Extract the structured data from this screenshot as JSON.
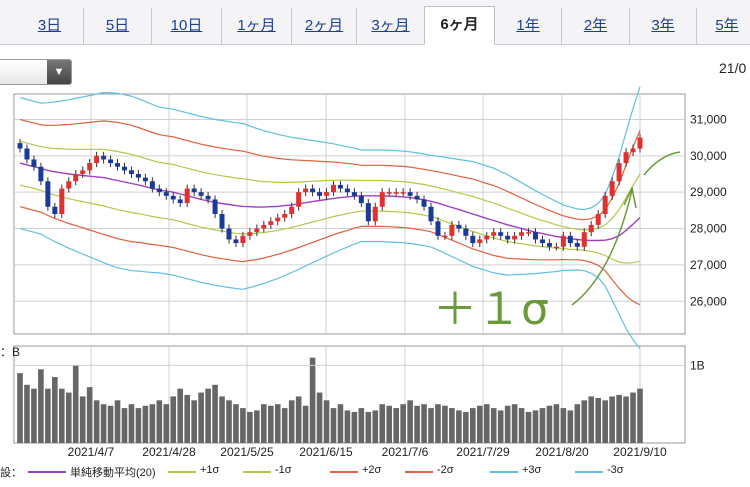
{
  "tabs": [
    {
      "label": "3日",
      "active": false
    },
    {
      "label": "5日",
      "active": false
    },
    {
      "label": "10日",
      "active": false
    },
    {
      "label": "1ヶ月",
      "active": false
    },
    {
      "label": "2ヶ月",
      "active": false
    },
    {
      "label": "3ヶ月",
      "active": false
    },
    {
      "label": "6ヶ月",
      "active": true
    },
    {
      "label": "1年",
      "active": false
    },
    {
      "label": "2年",
      "active": false
    },
    {
      "label": "3年",
      "active": false
    },
    {
      "label": "5年",
      "active": false
    }
  ],
  "header": {
    "date_partial": "21/0"
  },
  "annotation": {
    "text": "＋１σ",
    "color": "#6a9a3a"
  },
  "volume_label": "：B",
  "legend": {
    "prefix": "設：",
    "items": [
      {
        "label": "単純移動平均(20)",
        "color": "#a040c0"
      },
      {
        "label": "+1σ",
        "color": "#b5c84a"
      },
      {
        "label": "-1σ",
        "color": "#b5c84a"
      },
      {
        "label": "+2σ",
        "color": "#e06040"
      },
      {
        "label": "-2σ",
        "color": "#e06040"
      },
      {
        "label": "+3σ",
        "color": "#60c0e0"
      },
      {
        "label": "-3σ",
        "color": "#60c0e0"
      }
    ]
  },
  "chart_data": {
    "type": "candlestick",
    "x_tick_labels": [
      "2021/4/7",
      "2021/4/28",
      "2021/5/25",
      "2021/6/15",
      "2021/7/6",
      "2021/7/29",
      "2021/8/20",
      "2021/9/10"
    ],
    "y_ticks": [
      31000,
      30000,
      29000,
      28000,
      27000,
      26000
    ],
    "y_tick_labels": [
      "31,000",
      "30,000",
      "29,000",
      "28,000",
      "27,000",
      "26,000"
    ],
    "ylim": [
      25100,
      31700
    ],
    "volume_tick_label": "1B",
    "close": [
      30200,
      29900,
      29700,
      29300,
      28600,
      28400,
      29100,
      29300,
      29500,
      29600,
      29800,
      30000,
      29900,
      29800,
      29700,
      29600,
      29500,
      29400,
      29300,
      29100,
      29000,
      28900,
      28800,
      28700,
      29100,
      29000,
      28900,
      28800,
      28400,
      28000,
      27700,
      27600,
      27800,
      27900,
      28000,
      28100,
      28200,
      28300,
      28400,
      28600,
      29000,
      29100,
      29000,
      28900,
      29000,
      29200,
      29100,
      29000,
      28900,
      28700,
      28200,
      28600,
      29000,
      29000,
      29000,
      29000,
      28900,
      28800,
      28600,
      28200,
      27800,
      27800,
      28100,
      28000,
      27800,
      27600,
      27700,
      27800,
      27900,
      27800,
      27700,
      27800,
      27900,
      27900,
      27700,
      27600,
      27500,
      27500,
      27800,
      27600,
      27500,
      27900,
      28100,
      28400,
      28900,
      29300,
      29800,
      30100,
      30200,
      30500
    ],
    "sma20": [
      29800,
      29750,
      29700,
      29650,
      29600,
      29560,
      29530,
      29500,
      29480,
      29460,
      29440,
      29420,
      29400,
      29360,
      29320,
      29280,
      29240,
      29200,
      29150,
      29100,
      29060,
      29030,
      29000,
      28950,
      28900,
      28850,
      28800,
      28760,
      28720,
      28690,
      28660,
      28630,
      28610,
      28600,
      28590,
      28590,
      28600,
      28610,
      28630,
      28650,
      28680,
      28710,
      28740,
      28770,
      28800,
      28830,
      28850,
      28870,
      28890,
      28900,
      28900,
      28900,
      28900,
      28890,
      28880,
      28870,
      28850,
      28820,
      28790,
      28750,
      28700,
      28640,
      28580,
      28520,
      28460,
      28400,
      28340,
      28280,
      28220,
      28160,
      28100,
      28050,
      28000,
      27950,
      27900,
      27860,
      27820,
      27780,
      27750,
      27720,
      27700,
      27680,
      27670,
      27670,
      27680,
      27720,
      27800,
      27950,
      28120,
      28300
    ],
    "sigma": [
      600,
      600,
      600,
      600,
      620,
      640,
      660,
      680,
      700,
      720,
      740,
      760,
      780,
      790,
      800,
      800,
      800,
      790,
      780,
      770,
      760,
      760,
      760,
      760,
      760,
      760,
      760,
      760,
      760,
      760,
      760,
      760,
      760,
      740,
      720,
      700,
      680,
      660,
      640,
      620,
      600,
      580,
      560,
      540,
      520,
      500,
      480,
      460,
      440,
      420,
      420,
      420,
      420,
      420,
      420,
      420,
      420,
      420,
      420,
      420,
      430,
      440,
      450,
      460,
      470,
      480,
      480,
      480,
      480,
      470,
      460,
      440,
      420,
      400,
      380,
      360,
      340,
      320,
      300,
      290,
      280,
      280,
      300,
      340,
      420,
      560,
      720,
      900,
      1060,
      1200
    ],
    "volume": [
      0.9,
      0.75,
      0.7,
      0.95,
      0.7,
      0.85,
      0.7,
      0.65,
      1.0,
      0.6,
      0.72,
      0.55,
      0.5,
      0.48,
      0.55,
      0.45,
      0.5,
      0.45,
      0.48,
      0.5,
      0.55,
      0.5,
      0.6,
      0.7,
      0.62,
      0.55,
      0.65,
      0.7,
      0.75,
      0.6,
      0.55,
      0.5,
      0.45,
      0.4,
      0.42,
      0.5,
      0.48,
      0.5,
      0.45,
      0.55,
      0.6,
      0.48,
      1.1,
      0.65,
      0.55,
      0.45,
      0.5,
      0.42,
      0.4,
      0.45,
      0.4,
      0.42,
      0.5,
      0.48,
      0.45,
      0.5,
      0.55,
      0.48,
      0.5,
      0.45,
      0.5,
      0.48,
      0.45,
      0.42,
      0.4,
      0.45,
      0.48,
      0.5,
      0.45,
      0.42,
      0.48,
      0.5,
      0.45,
      0.4,
      0.42,
      0.45,
      0.48,
      0.5,
      0.45,
      0.42,
      0.5,
      0.55,
      0.6,
      0.58,
      0.55,
      0.6,
      0.62,
      0.6,
      0.65,
      0.7
    ]
  }
}
